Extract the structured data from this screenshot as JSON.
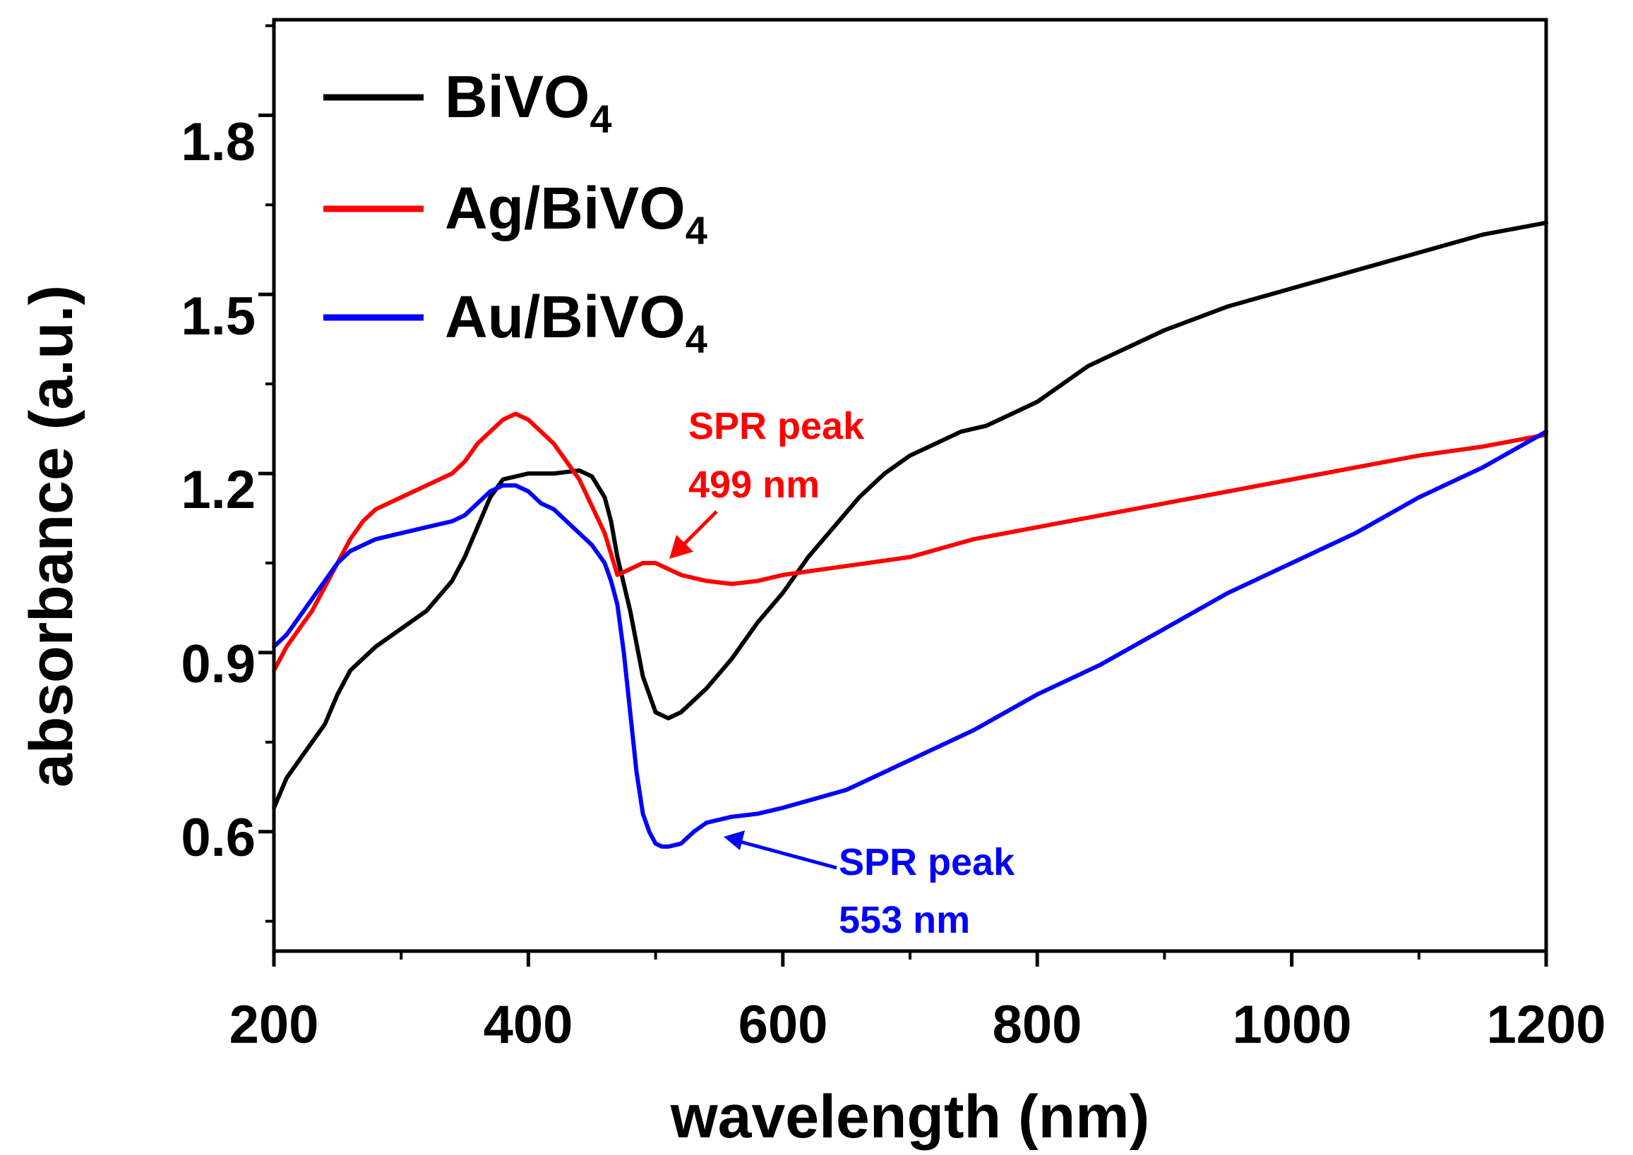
{
  "chart_data": {
    "type": "line",
    "title": "",
    "xlabel": "wavelength (nm)",
    "ylabel": "absorbance (a.u.)",
    "xlim": [
      200,
      1200
    ],
    "ylim": [
      0.4,
      1.96
    ],
    "x_ticks": [
      "200",
      "400",
      "600",
      "800",
      "1000",
      "1200"
    ],
    "y_ticks": [
      "0.6",
      "0.9",
      "1.2",
      "1.5",
      "1.8"
    ],
    "legend_position": "top-left",
    "series": [
      {
        "name": "BiVO4",
        "label_main": "BiVO",
        "label_sub": "4",
        "color": "#000000",
        "x": [
          200,
          210,
          220,
          230,
          240,
          250,
          260,
          270,
          280,
          300,
          320,
          340,
          350,
          360,
          370,
          380,
          390,
          400,
          420,
          440,
          450,
          460,
          465,
          470,
          480,
          490,
          500,
          510,
          520,
          540,
          560,
          580,
          600,
          620,
          640,
          660,
          680,
          700,
          720,
          740,
          760,
          780,
          800,
          820,
          840,
          860,
          880,
          900,
          950,
          1000,
          1050,
          1100,
          1150,
          1200
        ],
        "y": [
          0.64,
          0.69,
          0.72,
          0.75,
          0.78,
          0.83,
          0.87,
          0.89,
          0.91,
          0.94,
          0.97,
          1.02,
          1.06,
          1.11,
          1.16,
          1.19,
          1.195,
          1.2,
          1.2,
          1.205,
          1.195,
          1.16,
          1.12,
          1.06,
          0.97,
          0.86,
          0.8,
          0.79,
          0.8,
          0.84,
          0.89,
          0.95,
          1.0,
          1.06,
          1.11,
          1.16,
          1.2,
          1.23,
          1.25,
          1.27,
          1.28,
          1.3,
          1.32,
          1.35,
          1.38,
          1.4,
          1.42,
          1.44,
          1.48,
          1.51,
          1.54,
          1.57,
          1.6,
          1.62
        ]
      },
      {
        "name": "Ag/BiVO4",
        "label_main": "Ag/BiVO",
        "label_sub": "4",
        "color": "#ff0000",
        "x": [
          200,
          210,
          220,
          230,
          240,
          250,
          260,
          270,
          280,
          300,
          320,
          340,
          350,
          360,
          370,
          380,
          390,
          400,
          410,
          420,
          440,
          460,
          470,
          480,
          490,
          500,
          510,
          520,
          540,
          560,
          580,
          600,
          650,
          700,
          750,
          800,
          850,
          900,
          950,
          1000,
          1050,
          1100,
          1150,
          1200
        ],
        "y": [
          0.87,
          0.91,
          0.94,
          0.97,
          1.01,
          1.05,
          1.09,
          1.12,
          1.14,
          1.16,
          1.18,
          1.2,
          1.22,
          1.25,
          1.27,
          1.29,
          1.3,
          1.29,
          1.27,
          1.25,
          1.19,
          1.1,
          1.03,
          1.04,
          1.05,
          1.05,
          1.04,
          1.03,
          1.02,
          1.015,
          1.02,
          1.03,
          1.045,
          1.06,
          1.09,
          1.11,
          1.13,
          1.15,
          1.17,
          1.19,
          1.21,
          1.23,
          1.245,
          1.265
        ]
      },
      {
        "name": "Au/BiVO4",
        "label_main": "Au/BiVO",
        "label_sub": "4",
        "color": "#0000ff",
        "x": [
          200,
          210,
          220,
          230,
          240,
          250,
          260,
          270,
          280,
          300,
          320,
          340,
          350,
          360,
          370,
          380,
          390,
          400,
          410,
          420,
          430,
          440,
          450,
          460,
          465,
          470,
          475,
          480,
          485,
          490,
          495,
          500,
          505,
          510,
          520,
          530,
          540,
          550,
          560,
          580,
          600,
          650,
          700,
          750,
          800,
          850,
          900,
          950,
          1000,
          1050,
          1100,
          1150,
          1200
        ],
        "y": [
          0.91,
          0.93,
          0.96,
          0.99,
          1.02,
          1.05,
          1.07,
          1.08,
          1.09,
          1.1,
          1.11,
          1.12,
          1.13,
          1.15,
          1.17,
          1.18,
          1.18,
          1.17,
          1.15,
          1.14,
          1.12,
          1.1,
          1.08,
          1.05,
          1.02,
          0.98,
          0.9,
          0.8,
          0.7,
          0.63,
          0.6,
          0.58,
          0.575,
          0.575,
          0.58,
          0.6,
          0.615,
          0.62,
          0.625,
          0.63,
          0.64,
          0.67,
          0.72,
          0.77,
          0.83,
          0.88,
          0.94,
          1.0,
          1.05,
          1.1,
          1.16,
          1.21,
          1.27
        ]
      }
    ],
    "annotations": [
      {
        "line1": "SPR peak",
        "line2": "499 nm",
        "color": "#ff0000",
        "points_to": "Ag/BiVO4 peak at 499 nm"
      },
      {
        "line1": "SPR peak",
        "line2": "553 nm",
        "color": "#0000ff",
        "points_to": "Au/BiVO4 peak at 553 nm"
      }
    ]
  }
}
